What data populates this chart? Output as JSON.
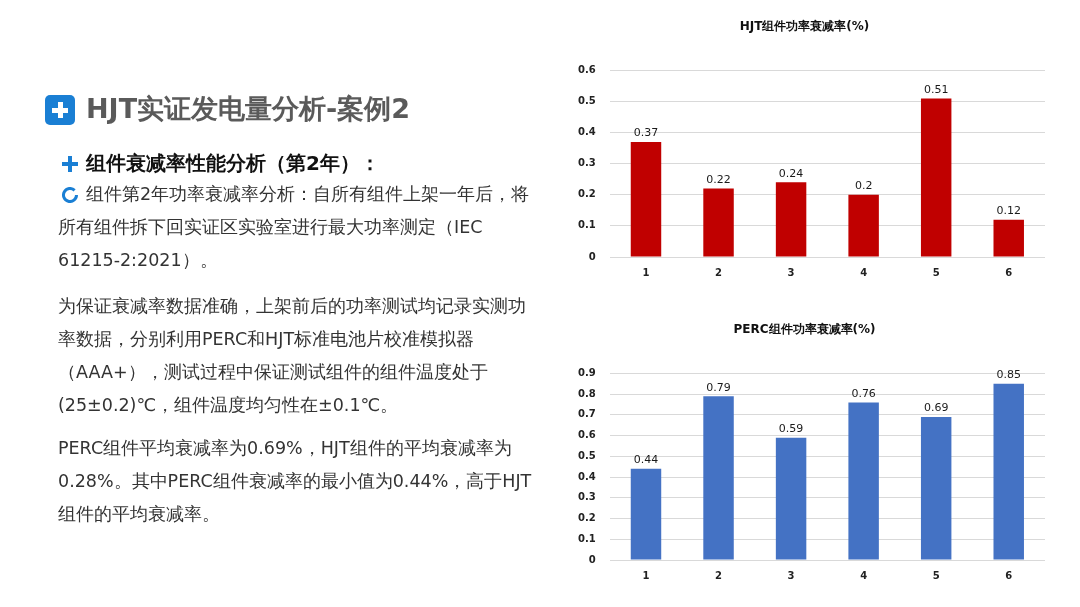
{
  "chart_data": [
    {
      "type": "other",
      "title": "HJT实证发电量分析-案例2",
      "subtitle": "组件衰减率性能分析（第2年）：",
      "annotations": [
        "组件第2年功率衰减率分析：自所有组件上架一年后，将所有组件拆下回实证区实验室进行最大功率测定（IEC 61215-2:2021）。",
        "为保证衰减率数据准确，上架前后的功率测试均记录实测功率数据，分别利用PERC和HJT标准电池片校准模拟器（AAA+），测试过程中保证测试组件的组件温度处于(25±0.2)℃，组件温度均匀性在±0.1℃。",
        "PERC组件平均衰减率为0.69%，HJT组件的平均衰减率为0.28%。其中PERC组件衰减率的最小值为0.44%，高于HJT组件的平均衰减率。"
      ]
    },
    {
      "type": "bar",
      "title": "HJT组件功率衰减率(%)",
      "categories": [
        "1",
        "2",
        "3",
        "4",
        "5",
        "6"
      ],
      "values": [
        0.37,
        0.22,
        0.24,
        0.2,
        0.51,
        0.12
      ],
      "color": "#c00000",
      "ylim": [
        0,
        0.6
      ],
      "yticks": [
        0,
        0.1,
        0.2,
        0.3,
        0.4,
        0.5,
        0.6
      ],
      "grid": "y",
      "data_labels": true
    },
    {
      "type": "bar",
      "title": "PERC组件功率衰减率(%)",
      "categories": [
        "1",
        "2",
        "3",
        "4",
        "5",
        "6"
      ],
      "values": [
        0.44,
        0.79,
        0.59,
        0.76,
        0.69,
        0.85
      ],
      "color": "#4472c4",
      "ylim": [
        0,
        0.9
      ],
      "yticks": [
        0,
        0.1,
        0.2,
        0.3,
        0.4,
        0.5,
        0.6,
        0.7,
        0.8,
        0.9
      ],
      "grid": "y",
      "data_labels": true
    }
  ]
}
